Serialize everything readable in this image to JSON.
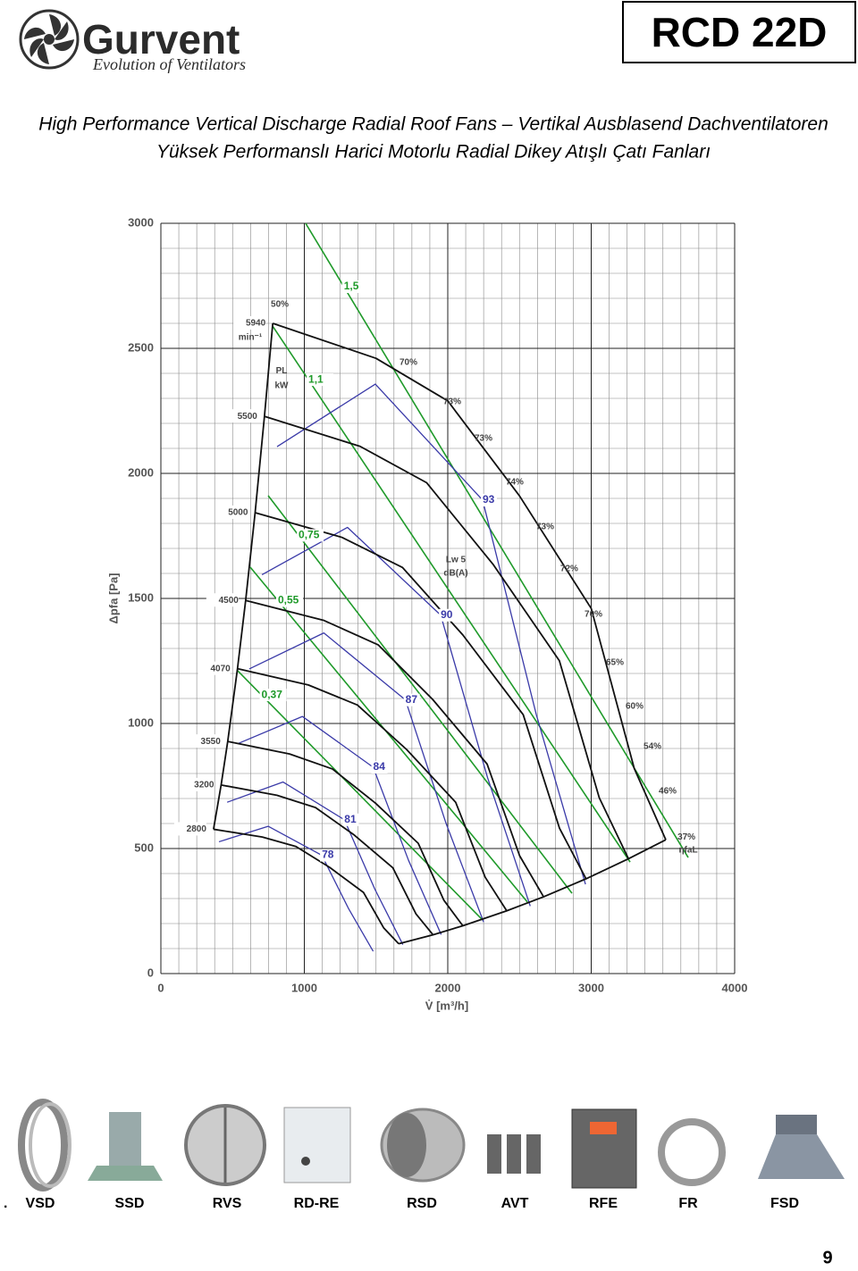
{
  "header": {
    "brand": "Gurvent",
    "slogan": "Evolution of Ventilators",
    "model": "RCD 22D",
    "title_line1": "High Performance Vertical Discharge Radial Roof Fans – Vertikal Ausblasend Dachventilatoren",
    "title_line2": "Yüksek Performanslı Harici Motorlu Radial Dikey Atışlı Çatı Fanları"
  },
  "chart_data": {
    "type": "line",
    "xlabel": "V̇ [m³/h]",
    "ylabel": "Δpfa [Pa]",
    "xlim": [
      0,
      4000
    ],
    "ylim": [
      0,
      3000
    ],
    "xticks": [
      0,
      1000,
      2000,
      3000,
      4000
    ],
    "yticks": [
      0,
      500,
      1000,
      1500,
      2000,
      2500,
      3000
    ],
    "grid": true,
    "series": [
      {
        "name": "5940",
        "color": "#111111",
        "x": [
          780,
          1500,
          2000,
          2500,
          3000,
          3300,
          3520
        ],
        "values": [
          2600,
          2460,
          2290,
          1910,
          1460,
          820,
          535
        ]
      },
      {
        "name": "5500",
        "color": "#111111",
        "x": [
          722,
          1389,
          1852,
          2315,
          2778,
          3056,
          3260
        ],
        "values": [
          2228,
          2108,
          1963,
          1637,
          1251,
          703,
          459
        ]
      },
      {
        "name": "5000",
        "color": "#111111",
        "x": [
          657,
          1263,
          1684,
          2105,
          2526,
          2779,
          2964
        ],
        "values": [
          1843,
          1744,
          1624,
          1354,
          1035,
          581,
          379
        ]
      },
      {
        "name": "4500",
        "color": "#111111",
        "x": [
          591,
          1137,
          1516,
          1895,
          2274,
          2501,
          2668
        ],
        "values": [
          1492,
          1412,
          1314,
          1096,
          838,
          471,
          307
        ]
      },
      {
        "name": "4070",
        "color": "#111111",
        "x": [
          534,
          1028,
          1370,
          1713,
          2055,
          2261,
          2411
        ],
        "values": [
          1219,
          1154,
          1074,
          896,
          685,
          385,
          251
        ]
      },
      {
        "name": "3550",
        "color": "#111111",
        "x": [
          466,
          897,
          1196,
          1495,
          1794,
          1973,
          2105
        ],
        "values": [
          928,
          878,
          818,
          682,
          521,
          293,
          191
        ]
      },
      {
        "name": "3200",
        "color": "#111111",
        "x": [
          420,
          809,
          1078,
          1348,
          1617,
          1779,
          1897
        ],
        "values": [
          754,
          713,
          664,
          554,
          423,
          238,
          155
        ]
      },
      {
        "name": "2800",
        "color": "#111111",
        "x": [
          367,
          707,
          942,
          1178,
          1413,
          1554,
          1658
        ],
        "values": [
          577,
          546,
          508,
          424,
          324,
          182,
          119
        ]
      }
    ],
    "power_series": [
      {
        "name": "1,5",
        "color": "#1f9a2a",
        "x": [
          1009,
          3676
        ],
        "values": [
          3000,
          464
        ]
      },
      {
        "name": "1,1",
        "color": "#1f9a2a",
        "x": [
          779,
          3271
        ],
        "values": [
          2589,
          446
        ]
      },
      {
        "name": "0,75",
        "color": "#1f9a2a",
        "x": [
          748,
          2866
        ],
        "values": [
          1911,
          321
        ]
      },
      {
        "name": "0,55",
        "color": "#1f9a2a",
        "x": [
          623,
          2555
        ],
        "values": [
          1625,
          286
        ]
      },
      {
        "name": "0,37",
        "color": "#1f9a2a",
        "x": [
          530,
          2243
        ],
        "values": [
          1214,
          214
        ]
      }
    ],
    "noise_series": [
      {
        "name": "93",
        "color": "#3a3aa8",
        "x": [
          810,
          1495,
          2243,
          2617,
          2960
        ],
        "values": [
          2107,
          2357,
          1893,
          1036,
          357
        ]
      },
      {
        "name": "90",
        "color": "#3a3aa8",
        "x": [
          705,
          1301,
          1951,
          2277,
          2575
        ],
        "values": [
          1595,
          1784,
          1433,
          784,
          270
        ]
      },
      {
        "name": "87",
        "color": "#3a3aa8",
        "x": [
          616,
          1136,
          1705,
          1989,
          2250
        ],
        "values": [
          1218,
          1362,
          1094,
          599,
          206
        ]
      },
      {
        "name": "84",
        "color": "#3a3aa8",
        "x": [
          535,
          987,
          1480,
          1727,
          1954
        ],
        "values": [
          919,
          1028,
          825,
          452,
          156
        ]
      },
      {
        "name": "81",
        "color": "#3a3aa8",
        "x": [
          462,
          852,
          1279,
          1492,
          1687
        ],
        "values": [
          685,
          766,
          615,
          337,
          116
        ]
      },
      {
        "name": "78",
        "color": "#3a3aa8",
        "x": [
          405,
          748,
          1122,
          1309,
          1480
        ],
        "values": [
          527,
          589,
          473,
          259,
          89
        ]
      }
    ],
    "annotations": [
      {
        "text": "min⁻¹",
        "x": 623,
        "y": 2543
      },
      {
        "text": "PL",
        "x": 841,
        "y": 2410
      },
      {
        "text": "kW",
        "x": 841,
        "y": 2350
      },
      {
        "text": "Lw 5",
        "x": 2056,
        "y": 1654
      },
      {
        "text": "dB(A)",
        "x": 2056,
        "y": 1600
      },
      {
        "text": "50%",
        "x": 829,
        "y": 2675
      },
      {
        "text": "70%",
        "x": 1726,
        "y": 2443
      },
      {
        "text": "73%",
        "x": 2031,
        "y": 2286
      },
      {
        "text": "73%",
        "x": 2249,
        "y": 2139
      },
      {
        "text": "74%",
        "x": 2467,
        "y": 1964
      },
      {
        "text": "73%",
        "x": 2679,
        "y": 1786
      },
      {
        "text": "72%",
        "x": 2847,
        "y": 1618
      },
      {
        "text": "70%",
        "x": 3016,
        "y": 1436
      },
      {
        "text": "65%",
        "x": 3165,
        "y": 1243
      },
      {
        "text": "60%",
        "x": 3302,
        "y": 1068
      },
      {
        "text": "54%",
        "x": 3427,
        "y": 907
      },
      {
        "text": "46%",
        "x": 3533,
        "y": 729
      },
      {
        "text": "37%",
        "x": 3664,
        "y": 546
      },
      {
        "text": "ηfaL",
        "x": 3676,
        "y": 493
      }
    ]
  },
  "accessories": {
    "lead": ".",
    "items": [
      "VSD",
      "SSD",
      "RVS",
      "RD-RE",
      "RSD",
      "AVT",
      "RFE",
      "FR",
      "FSD"
    ]
  },
  "page_number": "9"
}
